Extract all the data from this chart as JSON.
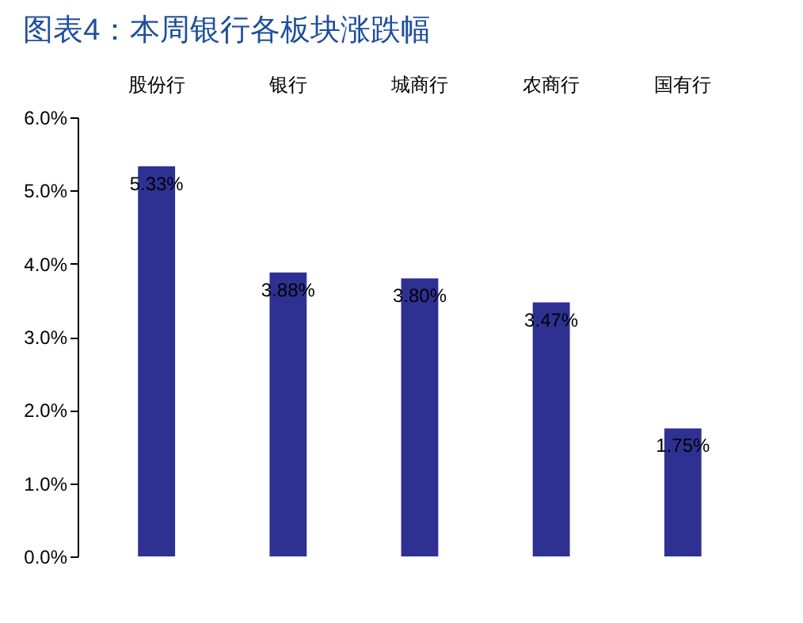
{
  "chart_data": {
    "type": "bar",
    "title": "图表4：本周银行各板块涨跌幅",
    "categories": [
      "股份行",
      "银行",
      "城商行",
      "农商行",
      "国有行"
    ],
    "values": [
      5.33,
      3.88,
      3.8,
      3.47,
      1.75
    ],
    "value_labels": [
      "5.33%",
      "3.88%",
      "3.80%",
      "3.47%",
      "1.75%"
    ],
    "color": "#2e3192",
    "ylim": [
      0,
      6
    ],
    "yticks": [
      {
        "value": 0,
        "label": "0.0%"
      },
      {
        "value": 1,
        "label": "1.0%"
      },
      {
        "value": 2,
        "label": "2.0%"
      },
      {
        "value": 3,
        "label": "3.0%"
      },
      {
        "value": 4,
        "label": "4.0%"
      },
      {
        "value": 5,
        "label": "5.0%"
      },
      {
        "value": 6,
        "label": "6.0%"
      }
    ]
  }
}
